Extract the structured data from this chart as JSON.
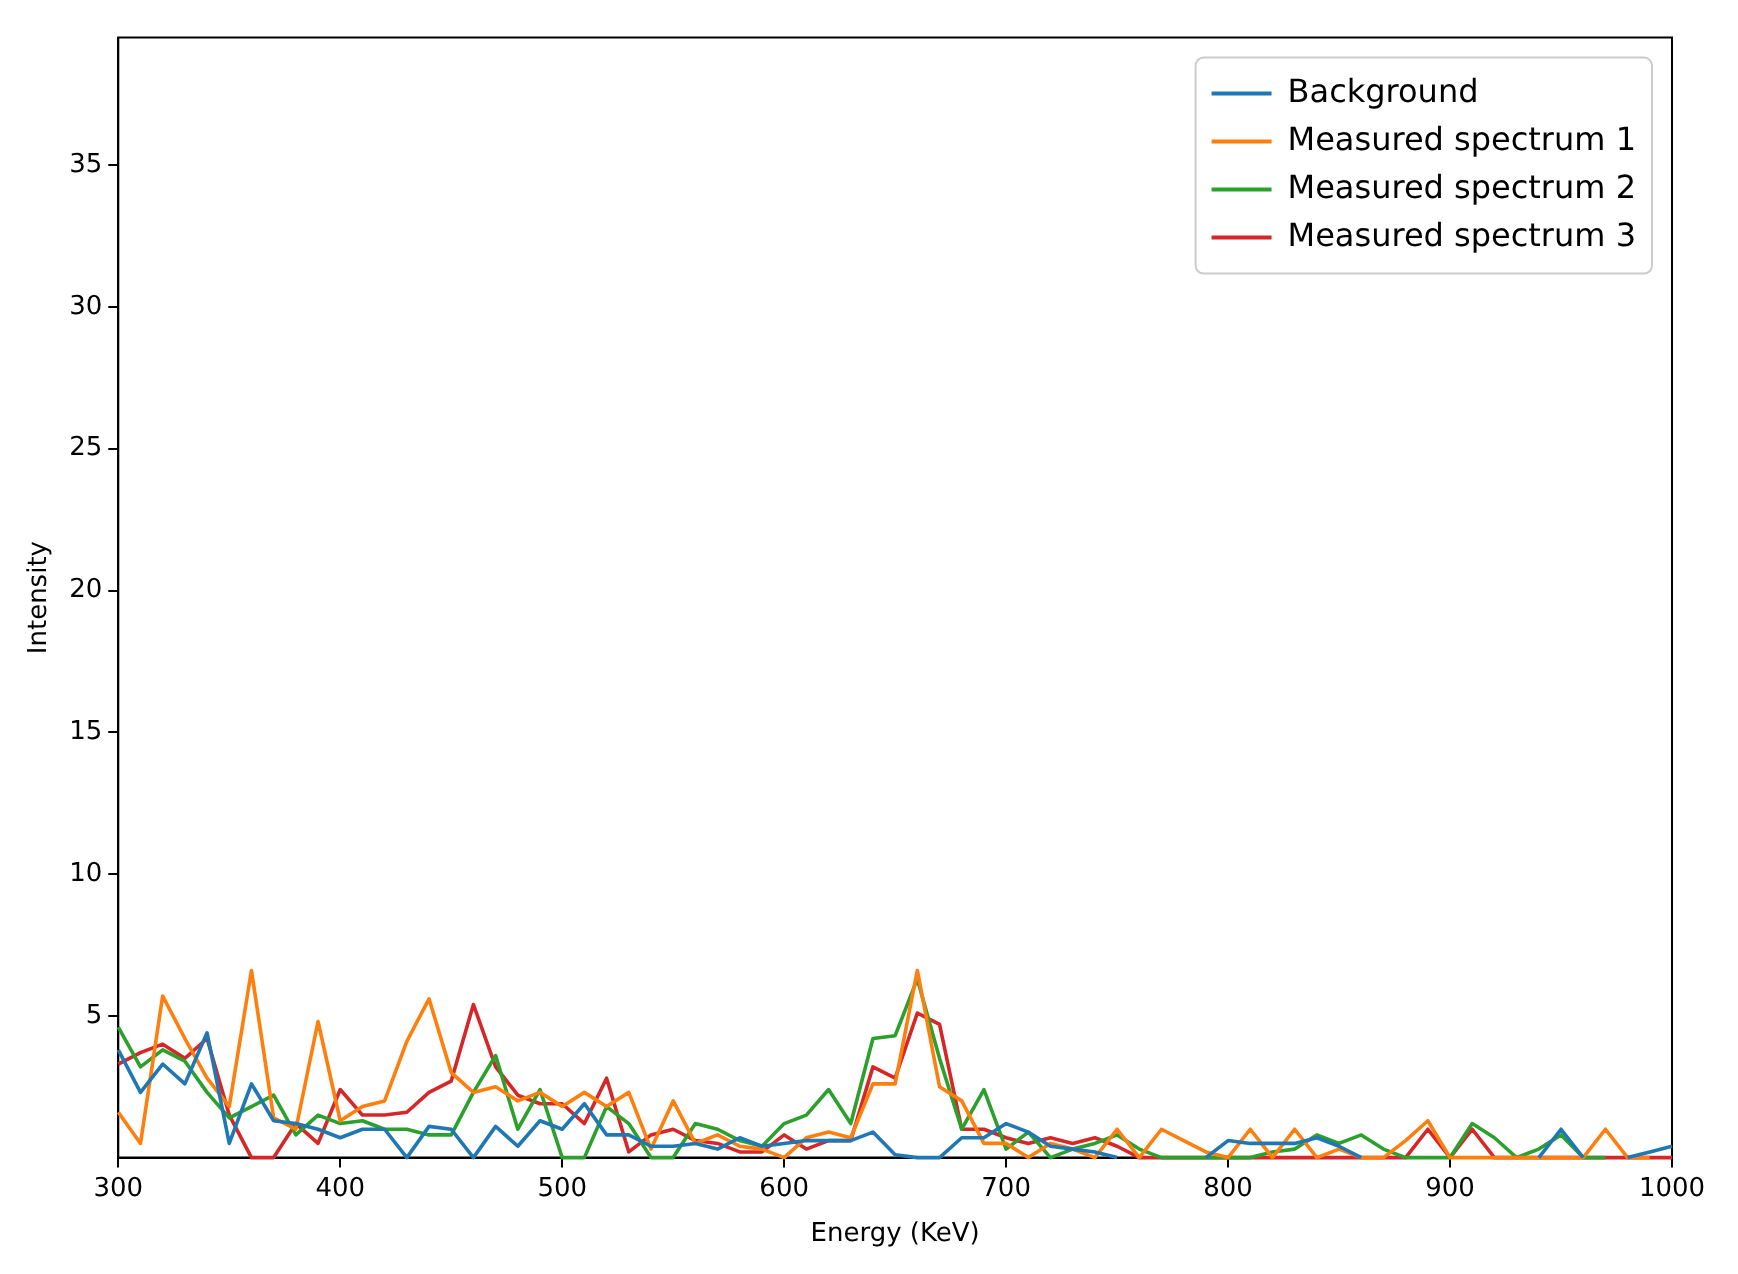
{
  "chart_data": {
    "type": "line",
    "xlabel": "Energy (KeV)",
    "ylabel": "Intensity",
    "x": [
      300,
      310,
      320,
      330,
      340,
      350,
      360,
      370,
      380,
      390,
      400,
      410,
      420,
      430,
      440,
      450,
      460,
      470,
      480,
      490,
      500,
      510,
      520,
      530,
      540,
      550,
      560,
      570,
      580,
      590,
      600,
      610,
      620,
      630,
      640,
      650,
      660,
      670,
      680,
      690,
      700,
      710,
      720,
      730,
      740,
      750,
      760,
      770,
      780,
      790,
      800,
      810,
      820,
      830,
      840,
      850,
      860,
      870,
      880,
      890,
      900,
      910,
      920,
      930,
      940,
      950,
      960,
      970,
      980,
      990,
      1000
    ],
    "series": [
      {
        "name": "Background",
        "color": "#1f77b4",
        "values": [
          3.8,
          2.3,
          3.3,
          2.6,
          4.4,
          0.5,
          2.6,
          1.3,
          1.2,
          1.0,
          0.7,
          1.0,
          1.0,
          0.0,
          1.1,
          1.0,
          0.0,
          1.1,
          0.4,
          1.3,
          1.0,
          1.9,
          0.8,
          0.8,
          0.4,
          0.4,
          0.5,
          0.3,
          0.7,
          0.4,
          0.5,
          0.6,
          0.6,
          0.6,
          0.9,
          0.1,
          0.0,
          0.0,
          0.7,
          0.7,
          1.2,
          0.9,
          0.4,
          0.3,
          0.2,
          0.0,
          null,
          null,
          null,
          0.0,
          0.6,
          0.5,
          0.5,
          0.5,
          0.7,
          0.4,
          0.0,
          null,
          null,
          null,
          null,
          null,
          null,
          null,
          0.0,
          1.0,
          0.0,
          null,
          0.0,
          0.2,
          0.4
        ]
      },
      {
        "name": "Measured spectrum 1",
        "color": "#ff7f0e",
        "values": [
          1.6,
          0.5,
          5.7,
          4.2,
          2.8,
          1.8,
          6.6,
          1.4,
          1.0,
          4.8,
          1.3,
          1.8,
          2.0,
          4.1,
          5.6,
          3.0,
          2.3,
          2.5,
          2.0,
          2.3,
          1.8,
          2.3,
          1.8,
          2.3,
          0.3,
          2.0,
          0.5,
          0.8,
          0.4,
          0.3,
          0.0,
          0.7,
          0.9,
          0.7,
          2.6,
          2.6,
          6.6,
          2.5,
          2.0,
          0.5,
          0.5,
          0.0,
          0.5,
          0.3,
          0.0,
          1.0,
          0.0,
          1.0,
          0.6,
          0.2,
          0.0,
          1.0,
          0.0,
          1.0,
          0.0,
          0.3,
          0.0,
          0.0,
          0.6,
          1.3,
          0.0,
          0.0,
          0.0,
          0.0,
          0.0,
          0.0,
          0.0,
          1.0,
          0.0,
          0.0,
          null
        ]
      },
      {
        "name": "Measured spectrum 2",
        "color": "#2ca02c",
        "values": [
          4.6,
          3.2,
          3.8,
          3.4,
          2.3,
          1.4,
          1.8,
          2.2,
          0.8,
          1.5,
          1.2,
          1.3,
          1.0,
          1.0,
          0.8,
          0.8,
          2.3,
          3.6,
          1.0,
          2.4,
          0.0,
          0.0,
          1.8,
          1.2,
          0.0,
          0.0,
          1.2,
          1.0,
          0.6,
          0.4,
          1.2,
          1.5,
          2.4,
          1.2,
          4.2,
          4.3,
          6.3,
          3.5,
          1.0,
          2.4,
          0.3,
          0.9,
          0.0,
          0.3,
          0.5,
          0.8,
          0.3,
          0.0,
          0.0,
          0.0,
          0.0,
          0.0,
          0.2,
          0.3,
          0.8,
          0.5,
          0.8,
          0.3,
          0.0,
          0.0,
          0.0,
          1.2,
          0.7,
          0.0,
          0.3,
          0.8,
          0.0,
          0.0,
          null,
          null,
          null
        ]
      },
      {
        "name": "Measured spectrum 3",
        "color": "#d62728",
        "values": [
          3.3,
          3.7,
          4.0,
          3.5,
          4.2,
          1.5,
          0.0,
          0.0,
          1.2,
          0.5,
          2.4,
          1.5,
          1.5,
          1.6,
          2.3,
          2.7,
          5.4,
          3.2,
          2.2,
          1.9,
          1.9,
          1.2,
          2.8,
          0.2,
          0.8,
          1.0,
          0.6,
          0.5,
          0.2,
          0.2,
          0.8,
          0.3,
          0.6,
          0.6,
          3.2,
          2.8,
          5.1,
          4.7,
          1.0,
          1.0,
          0.7,
          0.5,
          0.7,
          0.5,
          0.7,
          0.4,
          0.0,
          0.0,
          0.0,
          0.0,
          0.0,
          0.0,
          0.0,
          0.0,
          0.0,
          0.0,
          0.0,
          0.0,
          0.0,
          1.0,
          0.0,
          1.0,
          0.0,
          0.0,
          0.0,
          0.0,
          0.0,
          0.0,
          0.0,
          0.0,
          0.0
        ]
      }
    ],
    "xlim": [
      300,
      1000
    ],
    "ylim": [
      0,
      39.5
    ],
    "xticks": [
      300,
      400,
      500,
      600,
      700,
      800,
      900,
      1000
    ],
    "yticks": [
      5,
      10,
      15,
      20,
      25,
      30,
      35
    ],
    "grid": false,
    "legend": "top right",
    "marker": "none",
    "line_style": "solid"
  }
}
